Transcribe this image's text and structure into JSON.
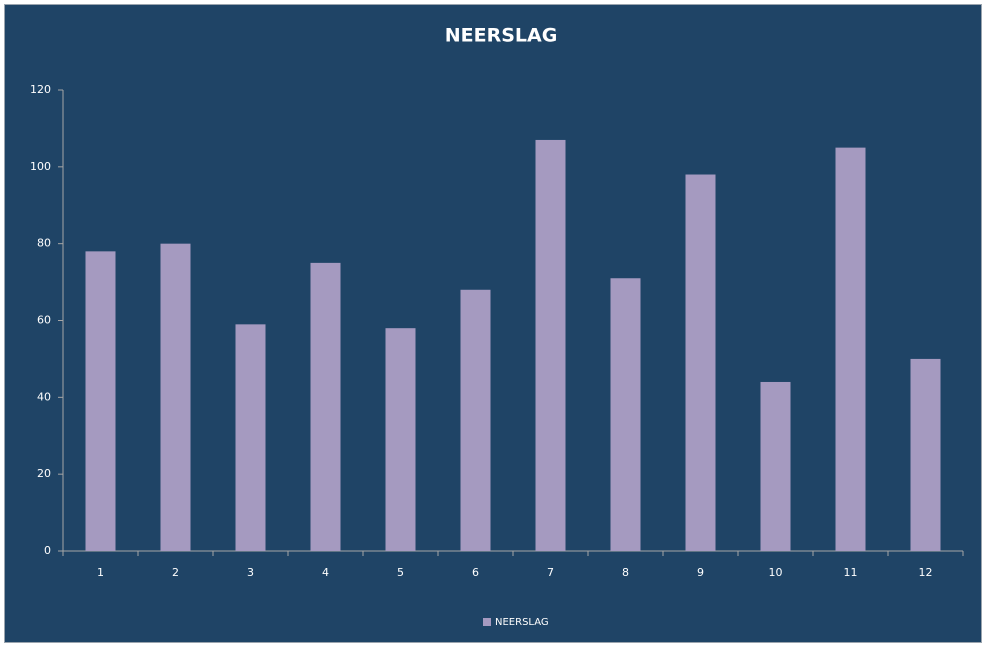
{
  "chart_data": {
    "type": "bar",
    "title": "NEERSLAG",
    "categories": [
      "1",
      "2",
      "3",
      "4",
      "5",
      "6",
      "7",
      "8",
      "9",
      "10",
      "11",
      "12"
    ],
    "series": [
      {
        "name": "NEERSLAG",
        "color": "#a59ac0",
        "values": [
          78,
          80,
          59,
          75,
          58,
          68,
          107,
          71,
          98,
          44,
          105,
          50
        ]
      }
    ],
    "ylim": [
      0,
      120
    ],
    "yticks": [
      0,
      20,
      40,
      60,
      80,
      100,
      120
    ],
    "grid": false,
    "legend": "bottom"
  }
}
